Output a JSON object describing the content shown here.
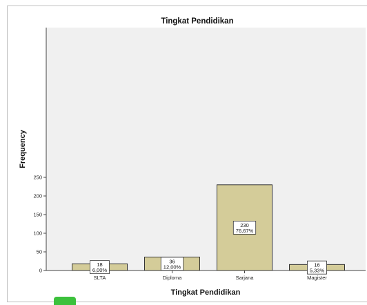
{
  "chart_data": {
    "type": "bar",
    "title": "Tingkat Pendidikan",
    "xlabel": "Tingkat Pendidikan",
    "ylabel": "Frequency",
    "categories": [
      "SLTA",
      "Diploma",
      "Sarjana",
      "Magister"
    ],
    "values": [
      18,
      36,
      230,
      16
    ],
    "data_labels": [
      {
        "count": "18",
        "percent": "6,00%"
      },
      {
        "count": "36",
        "percent": "12,00%"
      },
      {
        "count": "230",
        "percent": "76,67%"
      },
      {
        "count": "16",
        "percent": "5,33%"
      }
    ],
    "ylim": [
      0,
      260
    ],
    "yticks": [
      0,
      50,
      100,
      150,
      200,
      250
    ],
    "grid": false,
    "colors": {
      "plot_background": "#f0f0f0",
      "bar_fill": "#d4cc99",
      "bar_stroke": "#333333"
    }
  }
}
